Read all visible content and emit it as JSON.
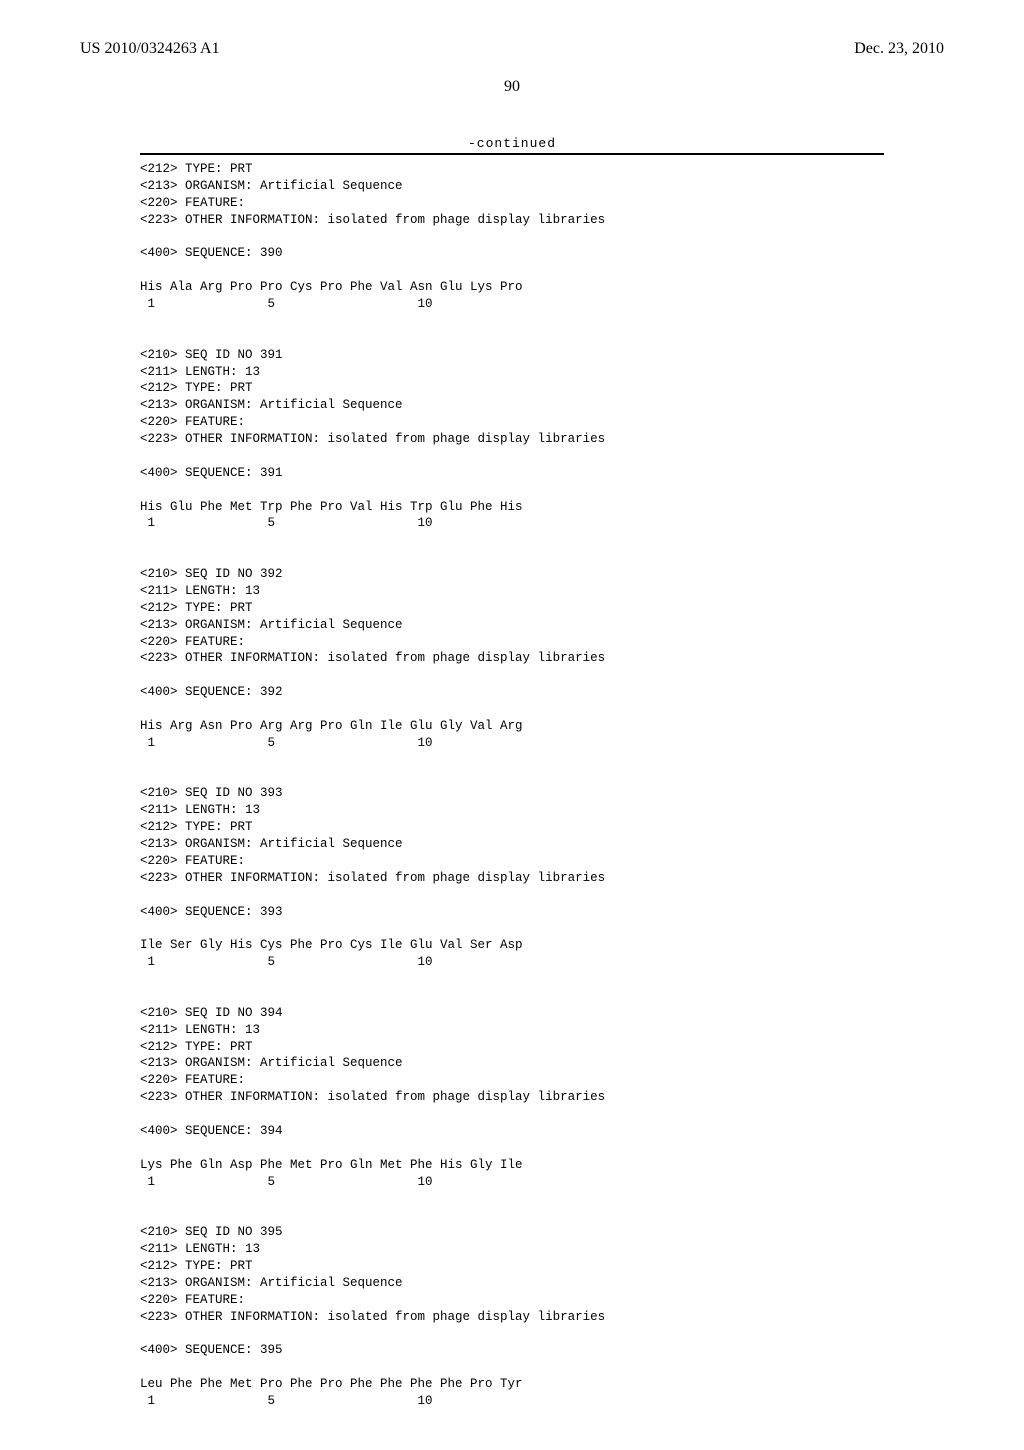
{
  "header": {
    "pub_number": "US 2010/0324263 A1",
    "pub_date": "Dec. 23, 2010"
  },
  "page_number": "90",
  "continued_label": "-continued",
  "seq_text": "<212> TYPE: PRT\n<213> ORGANISM: Artificial Sequence\n<220> FEATURE:\n<223> OTHER INFORMATION: isolated from phage display libraries\n\n<400> SEQUENCE: 390\n\nHis Ala Arg Pro Pro Cys Pro Phe Val Asn Glu Lys Pro\n 1               5                   10\n\n\n<210> SEQ ID NO 391\n<211> LENGTH: 13\n<212> TYPE: PRT\n<213> ORGANISM: Artificial Sequence\n<220> FEATURE:\n<223> OTHER INFORMATION: isolated from phage display libraries\n\n<400> SEQUENCE: 391\n\nHis Glu Phe Met Trp Phe Pro Val His Trp Glu Phe His\n 1               5                   10\n\n\n<210> SEQ ID NO 392\n<211> LENGTH: 13\n<212> TYPE: PRT\n<213> ORGANISM: Artificial Sequence\n<220> FEATURE:\n<223> OTHER INFORMATION: isolated from phage display libraries\n\n<400> SEQUENCE: 392\n\nHis Arg Asn Pro Arg Arg Pro Gln Ile Glu Gly Val Arg\n 1               5                   10\n\n\n<210> SEQ ID NO 393\n<211> LENGTH: 13\n<212> TYPE: PRT\n<213> ORGANISM: Artificial Sequence\n<220> FEATURE:\n<223> OTHER INFORMATION: isolated from phage display libraries\n\n<400> SEQUENCE: 393\n\nIle Ser Gly His Cys Phe Pro Cys Ile Glu Val Ser Asp\n 1               5                   10\n\n\n<210> SEQ ID NO 394\n<211> LENGTH: 13\n<212> TYPE: PRT\n<213> ORGANISM: Artificial Sequence\n<220> FEATURE:\n<223> OTHER INFORMATION: isolated from phage display libraries\n\n<400> SEQUENCE: 394\n\nLys Phe Gln Asp Phe Met Pro Gln Met Phe His Gly Ile\n 1               5                   10\n\n\n<210> SEQ ID NO 395\n<211> LENGTH: 13\n<212> TYPE: PRT\n<213> ORGANISM: Artificial Sequence\n<220> FEATURE:\n<223> OTHER INFORMATION: isolated from phage display libraries\n\n<400> SEQUENCE: 395\n\nLeu Phe Phe Met Pro Phe Pro Phe Phe Phe Phe Pro Tyr\n 1               5                   10"
}
